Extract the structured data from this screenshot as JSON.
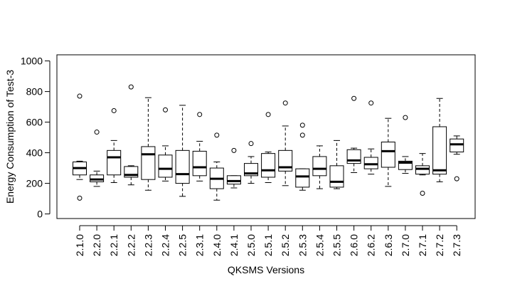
{
  "chart_data": {
    "type": "boxplot",
    "xlabel": "QKSMS Versions",
    "ylabel": "Energy Consumption of Test-3",
    "ylim": [
      -30,
      1040
    ],
    "yticks": [
      0,
      200,
      400,
      600,
      800,
      1000
    ],
    "grid": false,
    "categories": [
      "2.1.0",
      "2.2.0",
      "2.2.1",
      "2.2.2",
      "2.2.3",
      "2.2.4",
      "2.2.5",
      "2.3.1",
      "2.4.0",
      "2.4.1",
      "2.5.0",
      "2.5.1",
      "2.5.2",
      "2.5.3",
      "2.5.4",
      "2.5.5",
      "2.6.0",
      "2.6.2",
      "2.6.3",
      "2.7.0",
      "2.7.1",
      "2.7.2",
      "2.7.3"
    ],
    "boxes": [
      {
        "whislo": 225,
        "q1": 255,
        "med": 300,
        "q3": 340,
        "whishi": 345,
        "fliers": [
          770,
          103
        ]
      },
      {
        "whislo": 180,
        "q1": 210,
        "med": 225,
        "q3": 255,
        "whishi": 280,
        "fliers": [
          535
        ]
      },
      {
        "whislo": 205,
        "q1": 255,
        "med": 370,
        "q3": 415,
        "whishi": 480,
        "fliers": [
          675
        ]
      },
      {
        "whislo": 190,
        "q1": 240,
        "med": 255,
        "q3": 310,
        "whishi": 315,
        "fliers": [
          830
        ]
      },
      {
        "whislo": 155,
        "q1": 225,
        "med": 390,
        "q3": 440,
        "whishi": 760,
        "fliers": []
      },
      {
        "whislo": 215,
        "q1": 240,
        "med": 295,
        "q3": 385,
        "whishi": 445,
        "fliers": [
          680
        ]
      },
      {
        "whislo": 115,
        "q1": 200,
        "med": 260,
        "q3": 415,
        "whishi": 710,
        "fliers": []
      },
      {
        "whislo": 215,
        "q1": 250,
        "med": 305,
        "q3": 410,
        "whishi": 475,
        "fliers": [
          650
        ]
      },
      {
        "whislo": 90,
        "q1": 165,
        "med": 230,
        "q3": 300,
        "whishi": 340,
        "fliers": [
          515
        ]
      },
      {
        "whislo": 170,
        "q1": 195,
        "med": 215,
        "q3": 250,
        "whishi": 250,
        "fliers": [
          415
        ]
      },
      {
        "whislo": 200,
        "q1": 250,
        "med": 265,
        "q3": 330,
        "whishi": 375,
        "fliers": [
          460
        ]
      },
      {
        "whislo": 205,
        "q1": 240,
        "med": 285,
        "q3": 395,
        "whishi": 405,
        "fliers": [
          650
        ]
      },
      {
        "whislo": 185,
        "q1": 280,
        "med": 305,
        "q3": 415,
        "whishi": 575,
        "fliers": [
          725
        ]
      },
      {
        "whislo": 155,
        "q1": 175,
        "med": 245,
        "q3": 295,
        "whishi": 295,
        "fliers": [
          580,
          515
        ]
      },
      {
        "whislo": 165,
        "q1": 250,
        "med": 295,
        "q3": 375,
        "whishi": 445,
        "fliers": []
      },
      {
        "whislo": 165,
        "q1": 175,
        "med": 210,
        "q3": 315,
        "whishi": 480,
        "fliers": []
      },
      {
        "whislo": 270,
        "q1": 330,
        "med": 350,
        "q3": 420,
        "whishi": 430,
        "fliers": [
          755
        ]
      },
      {
        "whislo": 260,
        "q1": 295,
        "med": 325,
        "q3": 370,
        "whishi": 425,
        "fliers": [
          725
        ]
      },
      {
        "whislo": 180,
        "q1": 305,
        "med": 410,
        "q3": 470,
        "whishi": 625,
        "fliers": []
      },
      {
        "whislo": 265,
        "q1": 290,
        "med": 335,
        "q3": 345,
        "whishi": 375,
        "fliers": [
          630
        ]
      },
      {
        "whislo": 255,
        "q1": 260,
        "med": 295,
        "q3": 315,
        "whishi": 395,
        "fliers": [
          135
        ]
      },
      {
        "whislo": 210,
        "q1": 260,
        "med": 285,
        "q3": 570,
        "whishi": 755,
        "fliers": []
      },
      {
        "whislo": 390,
        "q1": 405,
        "med": 455,
        "q3": 490,
        "whishi": 510,
        "fliers": [
          230
        ]
      }
    ]
  }
}
